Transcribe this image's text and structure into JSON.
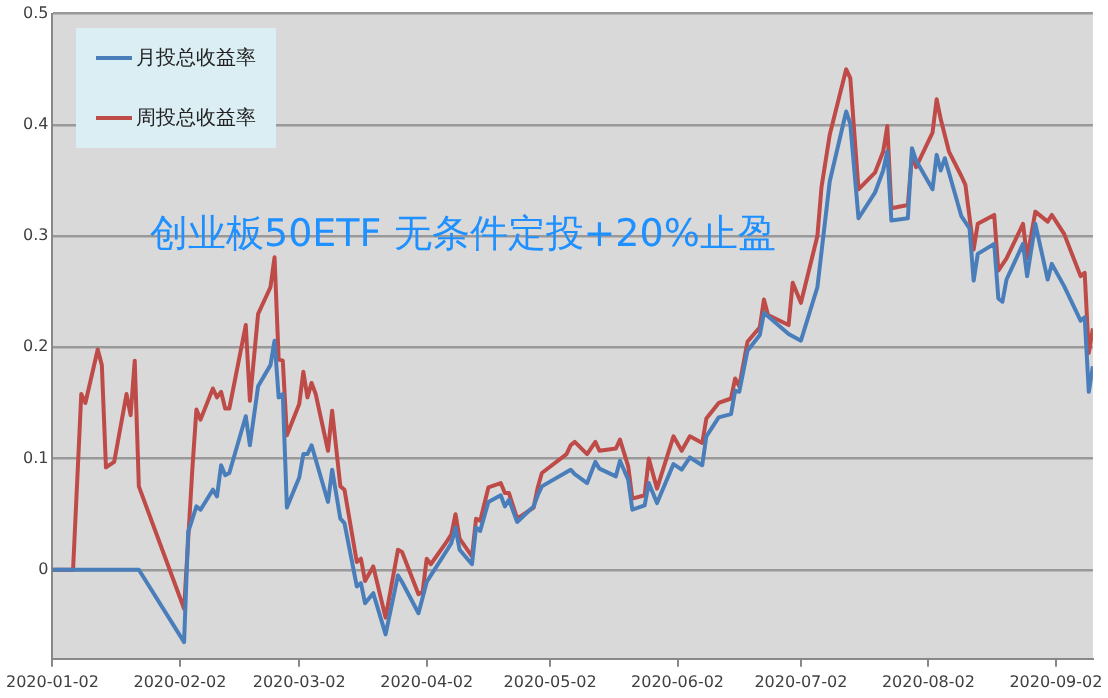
{
  "chart_data": {
    "type": "line",
    "title": "创业板50ETF 无条件定投+20%止盈",
    "legend": "top left",
    "grid": "y",
    "marker": "none",
    "line_style": "solid",
    "xlim": [
      "2020-01-02",
      "2020-09-11"
    ],
    "xticks": [
      "2020-01-02",
      "2020-02-02",
      "2020-03-02",
      "2020-04-02",
      "2020-05-02",
      "2020-06-02",
      "2020-07-02",
      "2020-08-02",
      "2020-09-02"
    ],
    "ylim": [
      -0.08,
      0.5
    ],
    "yticks": [
      0,
      0.1,
      0.2,
      0.3,
      0.4,
      0.5
    ],
    "series": [
      {
        "name": "月投总收益率",
        "color": "#4a7ebb",
        "x": [
          "2020-01-02",
          "2020-01-23",
          "2020-02-03",
          "2020-02-04",
          "2020-02-06",
          "2020-02-07",
          "2020-02-10",
          "2020-02-11",
          "2020-02-12",
          "2020-02-13",
          "2020-02-14",
          "2020-02-18",
          "2020-02-19",
          "2020-02-21",
          "2020-02-24",
          "2020-02-25",
          "2020-02-26",
          "2020-02-27",
          "2020-02-28",
          "2020-03-02",
          "2020-03-03",
          "2020-03-04",
          "2020-03-05",
          "2020-03-09",
          "2020-03-10",
          "2020-03-12",
          "2020-03-13",
          "2020-03-16",
          "2020-03-17",
          "2020-03-18",
          "2020-03-20",
          "2020-03-23",
          "2020-03-26",
          "2020-03-27",
          "2020-03-31",
          "2020-04-02",
          "2020-04-03",
          "2020-04-07",
          "2020-04-08",
          "2020-04-09",
          "2020-04-10",
          "2020-04-13",
          "2020-04-14",
          "2020-04-15",
          "2020-04-17",
          "2020-04-20",
          "2020-04-21",
          "2020-04-22",
          "2020-04-24",
          "2020-04-28",
          "2020-04-29",
          "2020-04-30",
          "2020-05-07",
          "2020-05-08",
          "2020-05-11",
          "2020-05-13",
          "2020-05-14",
          "2020-05-18",
          "2020-05-19",
          "2020-05-21",
          "2020-05-22",
          "2020-05-25",
          "2020-05-26",
          "2020-05-28",
          "2020-06-01",
          "2020-06-03",
          "2020-06-05",
          "2020-06-08",
          "2020-06-09",
          "2020-06-12",
          "2020-06-15",
          "2020-06-16",
          "2020-06-17",
          "2020-06-19",
          "2020-06-22",
          "2020-06-23",
          "2020-06-29",
          "2020-07-02",
          "2020-07-06",
          "2020-07-09",
          "2020-07-13",
          "2020-07-14",
          "2020-07-16",
          "2020-07-20",
          "2020-07-22",
          "2020-07-23",
          "2020-07-24",
          "2020-07-28",
          "2020-07-29",
          "2020-07-30",
          "2020-08-03",
          "2020-08-04",
          "2020-08-05",
          "2020-08-06",
          "2020-08-10",
          "2020-08-12",
          "2020-08-13",
          "2020-08-14",
          "2020-08-18",
          "2020-08-19",
          "2020-08-20",
          "2020-08-21",
          "2020-08-25",
          "2020-08-26",
          "2020-08-28",
          "2020-08-31",
          "2020-09-01",
          "2020-09-04",
          "2020-09-08",
          "2020-09-09",
          "2020-09-10",
          "2020-09-11"
        ],
        "values": [
          0,
          0,
          -0.065,
          0.034,
          0.057,
          0.054,
          0.072,
          0.066,
          0.094,
          0.085,
          0.087,
          0.138,
          0.112,
          0.165,
          0.184,
          0.206,
          0.155,
          0.158,
          0.056,
          0.083,
          0.104,
          0.104,
          0.112,
          0.061,
          0.09,
          0.046,
          0.042,
          -0.015,
          -0.012,
          -0.03,
          -0.021,
          -0.058,
          -0.005,
          -0.011,
          -0.039,
          -0.011,
          -0.005,
          0.018,
          0.024,
          0.038,
          0.018,
          0.005,
          0.038,
          0.035,
          0.061,
          0.067,
          0.057,
          0.063,
          0.043,
          0.057,
          0.067,
          0.075,
          0.09,
          0.086,
          0.078,
          0.097,
          0.091,
          0.084,
          0.098,
          0.081,
          0.054,
          0.058,
          0.078,
          0.06,
          0.095,
          0.09,
          0.101,
          0.094,
          0.12,
          0.137,
          0.14,
          0.161,
          0.16,
          0.197,
          0.211,
          0.231,
          0.212,
          0.206,
          0.254,
          0.349,
          0.412,
          0.401,
          0.316,
          0.339,
          0.359,
          0.376,
          0.314,
          0.316,
          0.379,
          0.368,
          0.342,
          0.373,
          0.359,
          0.37,
          0.318,
          0.307,
          0.26,
          0.284,
          0.293,
          0.244,
          0.241,
          0.261,
          0.293,
          0.264,
          0.311,
          0.261,
          0.275,
          0.255,
          0.224,
          0.227,
          0.16,
          0.183
        ]
      },
      {
        "name": "周投总收益率",
        "color": "#be4b48",
        "x": [
          "2020-01-02",
          "2020-01-07",
          "2020-01-09",
          "2020-01-10",
          "2020-01-13",
          "2020-01-14",
          "2020-01-15",
          "2020-01-17",
          "2020-01-20",
          "2020-01-21",
          "2020-01-22",
          "2020-01-23",
          "2020-02-03",
          "2020-02-05",
          "2020-02-06",
          "2020-02-07",
          "2020-02-10",
          "2020-02-11",
          "2020-02-12",
          "2020-02-13",
          "2020-02-14",
          "2020-02-18",
          "2020-02-19",
          "2020-02-21",
          "2020-02-24",
          "2020-02-25",
          "2020-02-26",
          "2020-02-27",
          "2020-02-28",
          "2020-03-02",
          "2020-03-03",
          "2020-03-04",
          "2020-03-05",
          "2020-03-06",
          "2020-03-09",
          "2020-03-10",
          "2020-03-12",
          "2020-03-13",
          "2020-03-16",
          "2020-03-17",
          "2020-03-18",
          "2020-03-20",
          "2020-03-23",
          "2020-03-26",
          "2020-03-27",
          "2020-03-31",
          "2020-04-01",
          "2020-04-02",
          "2020-04-03",
          "2020-04-07",
          "2020-04-08",
          "2020-04-09",
          "2020-04-10",
          "2020-04-13",
          "2020-04-14",
          "2020-04-15",
          "2020-04-17",
          "2020-04-20",
          "2020-04-21",
          "2020-04-22",
          "2020-04-24",
          "2020-04-28",
          "2020-04-29",
          "2020-04-30",
          "2020-05-06",
          "2020-05-07",
          "2020-05-08",
          "2020-05-11",
          "2020-05-13",
          "2020-05-14",
          "2020-05-18",
          "2020-05-19",
          "2020-05-21",
          "2020-05-22",
          "2020-05-25",
          "2020-05-26",
          "2020-05-28",
          "2020-06-01",
          "2020-06-03",
          "2020-06-05",
          "2020-06-08",
          "2020-06-09",
          "2020-06-12",
          "2020-06-15",
          "2020-06-16",
          "2020-06-17",
          "2020-06-19",
          "2020-06-22",
          "2020-06-23",
          "2020-06-24",
          "2020-06-29",
          "2020-06-30",
          "2020-07-02",
          "2020-07-06",
          "2020-07-07",
          "2020-07-09",
          "2020-07-13",
          "2020-07-14",
          "2020-07-16",
          "2020-07-20",
          "2020-07-22",
          "2020-07-23",
          "2020-07-24",
          "2020-07-28",
          "2020-07-29",
          "2020-07-30",
          "2020-08-03",
          "2020-08-04",
          "2020-08-05",
          "2020-08-07",
          "2020-08-10",
          "2020-08-11",
          "2020-08-13",
          "2020-08-14",
          "2020-08-18",
          "2020-08-19",
          "2020-08-21",
          "2020-08-25",
          "2020-08-26",
          "2020-08-28",
          "2020-08-31",
          "2020-09-01",
          "2020-09-04",
          "2020-09-08",
          "2020-09-09",
          "2020-09-10",
          "2020-09-11"
        ],
        "values": [
          0,
          0,
          0.158,
          0.15,
          0.198,
          0.184,
          0.092,
          0.097,
          0.158,
          0.139,
          0.188,
          0.075,
          -0.035,
          0.09,
          0.144,
          0.135,
          0.163,
          0.155,
          0.16,
          0.145,
          0.145,
          0.22,
          0.152,
          0.23,
          0.254,
          0.281,
          0.189,
          0.188,
          0.121,
          0.149,
          0.178,
          0.155,
          0.168,
          0.158,
          0.107,
          0.143,
          0.075,
          0.072,
          0.007,
          0.01,
          -0.01,
          0.003,
          -0.043,
          0.018,
          0.016,
          -0.022,
          -0.02,
          0.01,
          0.005,
          0.026,
          0.032,
          0.05,
          0.028,
          0.012,
          0.046,
          0.044,
          0.074,
          0.078,
          0.069,
          0.069,
          0.046,
          0.056,
          0.074,
          0.087,
          0.104,
          0.112,
          0.115,
          0.104,
          0.115,
          0.107,
          0.109,
          0.117,
          0.093,
          0.064,
          0.067,
          0.1,
          0.073,
          0.12,
          0.107,
          0.12,
          0.114,
          0.136,
          0.15,
          0.154,
          0.172,
          0.165,
          0.205,
          0.218,
          0.243,
          0.229,
          0.22,
          0.258,
          0.24,
          0.3,
          0.344,
          0.391,
          0.45,
          0.442,
          0.342,
          0.357,
          0.376,
          0.399,
          0.325,
          0.328,
          0.373,
          0.362,
          0.393,
          0.423,
          0.405,
          0.376,
          0.354,
          0.346,
          0.288,
          0.311,
          0.319,
          0.269,
          0.28,
          0.311,
          0.28,
          0.322,
          0.313,
          0.319,
          0.302,
          0.264,
          0.267,
          0.195,
          0.217
        ]
      }
    ]
  }
}
